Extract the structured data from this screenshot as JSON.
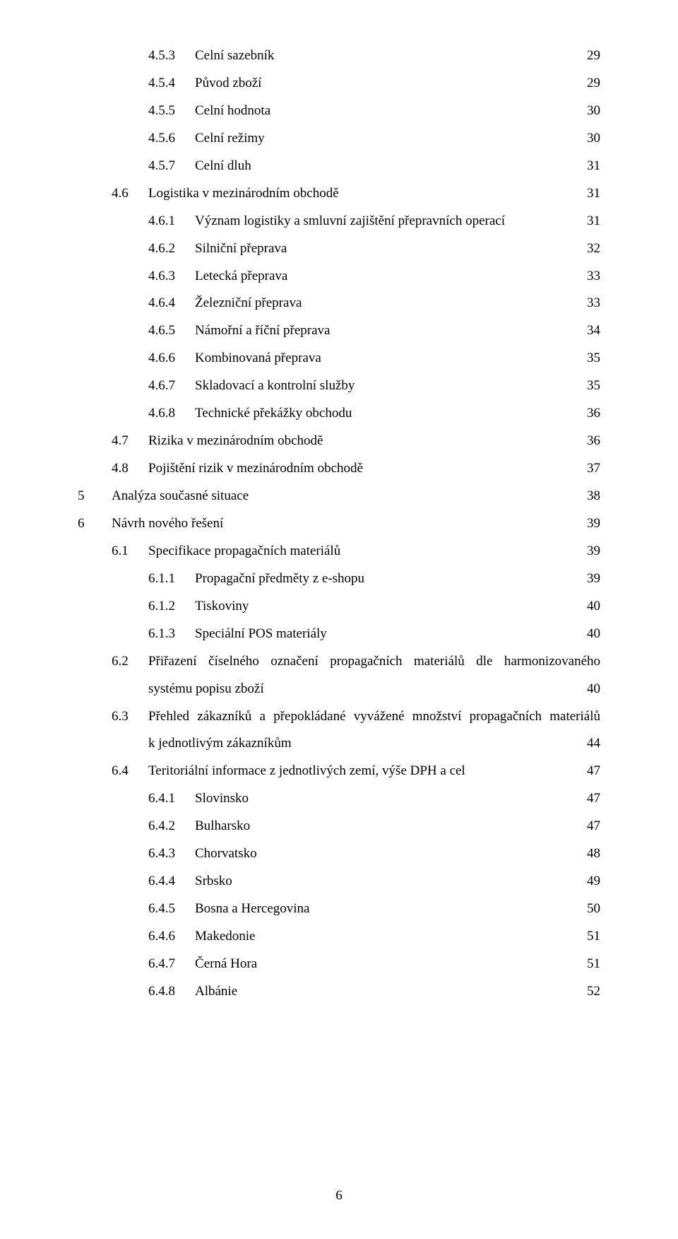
{
  "colors": {
    "text": "#000000",
    "background": "#ffffff"
  },
  "typography": {
    "font_family": "Times New Roman",
    "font_size_pt": 12
  },
  "page_number": "6",
  "entries": [
    {
      "level": 2,
      "num": "4.5.3",
      "title": "Celní sazebník",
      "page": "29"
    },
    {
      "level": 2,
      "num": "4.5.4",
      "title": "Původ zboží",
      "page": "29"
    },
    {
      "level": 2,
      "num": "4.5.5",
      "title": "Celní hodnota",
      "page": "30"
    },
    {
      "level": 2,
      "num": "4.5.6",
      "title": "Celní režimy",
      "page": "30"
    },
    {
      "level": 2,
      "num": "4.5.7",
      "title": "Celní dluh",
      "page": "31"
    },
    {
      "level": 1,
      "num": "4.6",
      "title": "Logistika v mezinárodním obchodě",
      "page": "31"
    },
    {
      "level": 2,
      "num": "4.6.1",
      "title": "Význam logistiky a smluvní zajištění přepravních operací",
      "page": "31"
    },
    {
      "level": 2,
      "num": "4.6.2",
      "title": "Silniční přeprava",
      "page": "32"
    },
    {
      "level": 2,
      "num": "4.6.3",
      "title": "Letecká přeprava",
      "page": "33"
    },
    {
      "level": 2,
      "num": "4.6.4",
      "title": "Železniční přeprava",
      "page": "33"
    },
    {
      "level": 2,
      "num": "4.6.5",
      "title": "Námořní a říční přeprava",
      "page": "34"
    },
    {
      "level": 2,
      "num": "4.6.6",
      "title": "Kombinovaná přeprava",
      "page": "35"
    },
    {
      "level": 2,
      "num": "4.6.7",
      "title": "Skladovací a kontrolní služby",
      "page": "35"
    },
    {
      "level": 2,
      "num": "4.6.8",
      "title": "Technické překážky obchodu",
      "page": "36"
    },
    {
      "level": 1,
      "num": "4.7",
      "title": "Rizika v mezinárodním obchodě",
      "page": "36"
    },
    {
      "level": 1,
      "num": "4.8",
      "title": "Pojištění rizik v mezinárodním obchodě",
      "page": "37"
    },
    {
      "level": 0,
      "num": "5",
      "title": "Analýza současné situace",
      "page": "38"
    },
    {
      "level": 0,
      "num": "6",
      "title": "Návrh nového řešení",
      "page": "39"
    },
    {
      "level": 1,
      "num": "6.1",
      "title": "Specifikace propagačních materiálů",
      "page": "39"
    },
    {
      "level": 2,
      "num": "6.1.1",
      "title": "Propagační předměty z e-shopu",
      "page": "39"
    },
    {
      "level": 2,
      "num": "6.1.2",
      "title": "Tiskoviny",
      "page": "40"
    },
    {
      "level": 2,
      "num": "6.1.3",
      "title": "Speciální POS materiály",
      "page": "40"
    }
  ],
  "wrap_entries": {
    "w62": {
      "level": 1,
      "num": "6.2",
      "line1": "Přiřazení číselného označení propagačních materiálů dle harmonizovaného",
      "line2": "systému popisu zboží",
      "page": "40"
    },
    "w63": {
      "level": 1,
      "num": "6.3",
      "line1": "Přehled zákazníků a přepokládané vyvážené množství propagačních materiálů",
      "line2": "k jednotlivým zákazníkům",
      "page": "44"
    }
  },
  "entries2": [
    {
      "level": 1,
      "num": "6.4",
      "title": "Teritoriální informace z jednotlivých zemí, výše DPH a cel",
      "page": "47"
    },
    {
      "level": 2,
      "num": "6.4.1",
      "title": "Slovinsko",
      "page": "47"
    },
    {
      "level": 2,
      "num": "6.4.2",
      "title": "Bulharsko",
      "page": "47"
    },
    {
      "level": 2,
      "num": "6.4.3",
      "title": "Chorvatsko",
      "page": "48"
    },
    {
      "level": 2,
      "num": "6.4.4",
      "title": "Srbsko",
      "page": "49"
    },
    {
      "level": 2,
      "num": "6.4.5",
      "title": "Bosna a Hercegovina",
      "page": "50"
    },
    {
      "level": 2,
      "num": "6.4.6",
      "title": "Makedonie",
      "page": "51"
    },
    {
      "level": 2,
      "num": "6.4.7",
      "title": "Černá Hora",
      "page": "51"
    },
    {
      "level": 2,
      "num": "6.4.8",
      "title": "Albánie",
      "page": "52"
    }
  ]
}
